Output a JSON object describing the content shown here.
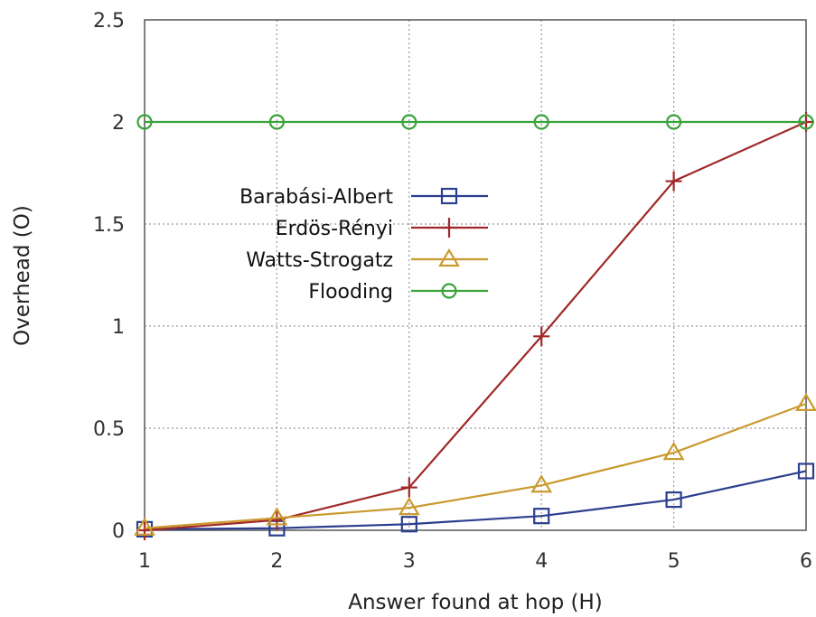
{
  "chart_data": {
    "type": "line",
    "title": "",
    "xlabel": "Answer found at hop (H)",
    "ylabel": "Overhead (O)",
    "x": [
      1,
      2,
      3,
      4,
      5,
      6
    ],
    "xlim": [
      1,
      6
    ],
    "ylim": [
      0,
      2.5
    ],
    "xticks": [
      "1",
      "2",
      "3",
      "4",
      "5",
      "6"
    ],
    "yticks": [
      "0",
      "0.5",
      "1",
      "1.5",
      "2",
      "2.5"
    ],
    "grid": true,
    "legend_position": "center-left",
    "series": [
      {
        "name": "Barabási-Albert",
        "color": "#2b3f8f",
        "marker": "square",
        "values": [
          0.005,
          0.01,
          0.03,
          0.07,
          0.15,
          0.29
        ]
      },
      {
        "name": "Erdös-Rényi",
        "color": "#a02828",
        "marker": "plus",
        "values": [
          0.0,
          0.05,
          0.21,
          0.95,
          1.71,
          2.0
        ]
      },
      {
        "name": "Watts-Strogatz",
        "color": "#c99a2e",
        "marker": "triangle",
        "values": [
          0.01,
          0.06,
          0.11,
          0.22,
          0.38,
          0.62
        ]
      },
      {
        "name": "Flooding",
        "color": "#3aa33a",
        "marker": "circle",
        "values": [
          2.0,
          2.0,
          2.0,
          2.0,
          2.0,
          2.0
        ]
      }
    ]
  }
}
